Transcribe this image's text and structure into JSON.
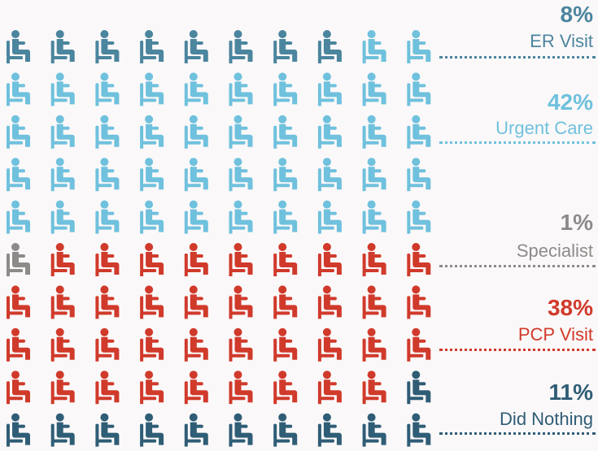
{
  "chart_data": {
    "type": "waffle",
    "grid": {
      "rows": 10,
      "columns": 10,
      "unit_percent": 1,
      "fill_order": "row-major, top-left"
    },
    "categories": [
      {
        "label": "ER Visit",
        "value_text": "8%",
        "value": 8,
        "color": "#4b859e"
      },
      {
        "label": "Urgent Care",
        "value_text": "42%",
        "value": 42,
        "color": "#6fc1dd"
      },
      {
        "label": "Specialist",
        "value_text": "1%",
        "value": 1,
        "color": "#8e8a89"
      },
      {
        "label": "PCP Visit",
        "value_text": "38%",
        "value": 38,
        "color": "#d03a2b"
      },
      {
        "label": "Did Nothing",
        "value_text": "11%",
        "value": 11,
        "color": "#2f5d76"
      }
    ],
    "icon": "seated-person-icon"
  }
}
